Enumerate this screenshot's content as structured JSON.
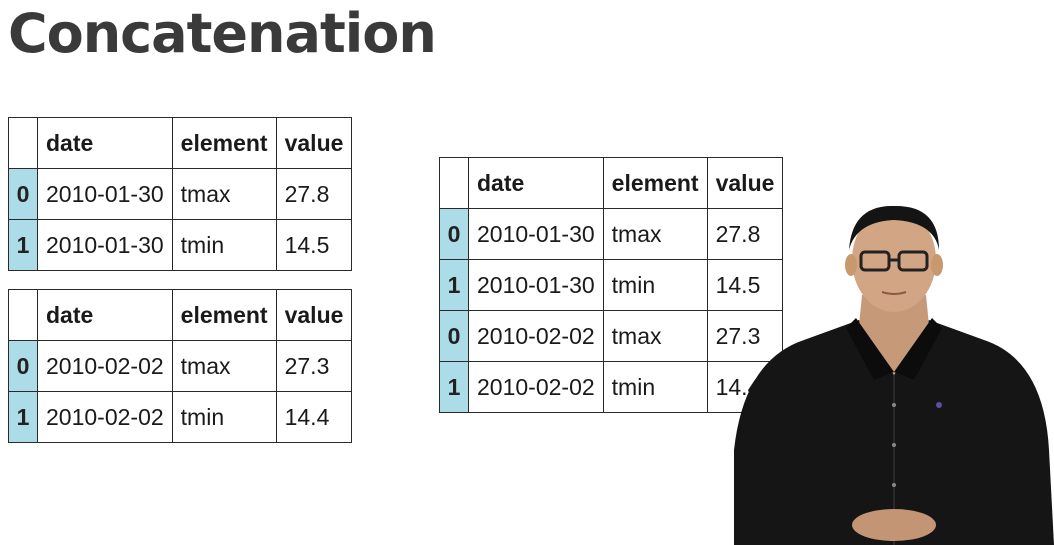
{
  "slide": {
    "title": "Concatenation"
  },
  "tables": {
    "first": {
      "columns": [
        "date",
        "element",
        "value"
      ],
      "rows": [
        {
          "index": "0",
          "date": "2010-01-30",
          "element": "tmax",
          "value": "27.8"
        },
        {
          "index": "1",
          "date": "2010-01-30",
          "element": "tmin",
          "value": "14.5"
        }
      ]
    },
    "second": {
      "columns": [
        "date",
        "element",
        "value"
      ],
      "rows": [
        {
          "index": "0",
          "date": "2010-02-02",
          "element": "tmax",
          "value": "27.3"
        },
        {
          "index": "1",
          "date": "2010-02-02",
          "element": "tmin",
          "value": "14.4"
        }
      ]
    },
    "concatenated": {
      "columns": [
        "date",
        "element",
        "value"
      ],
      "rows": [
        {
          "index": "0",
          "date": "2010-01-30",
          "element": "tmax",
          "value": "27.8"
        },
        {
          "index": "1",
          "date": "2010-01-30",
          "element": "tmin",
          "value": "14.5"
        },
        {
          "index": "0",
          "date": "2010-02-02",
          "element": "tmax",
          "value": "27.3"
        },
        {
          "index": "1",
          "date": "2010-02-02",
          "element": "tmin",
          "value": "14.4"
        }
      ]
    }
  },
  "colors": {
    "index_highlight": "#acdce8",
    "border": "#2a2a2a",
    "title": "#3a3a3a"
  }
}
